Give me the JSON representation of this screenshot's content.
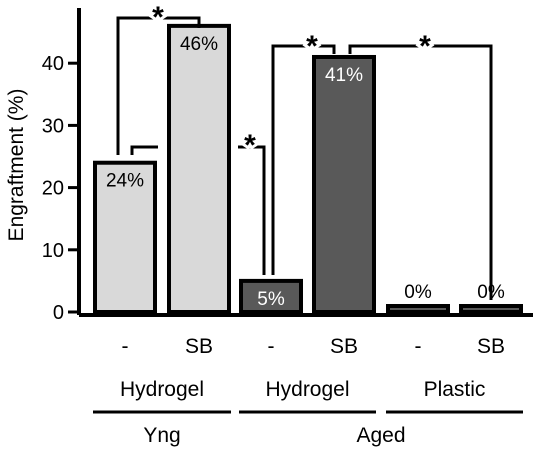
{
  "chart_data": {
    "type": "bar",
    "ylabel": "Engraftment (%)",
    "ylim": [
      0,
      46
    ],
    "yticks": [
      0,
      10,
      20,
      30,
      40
    ],
    "grid": false,
    "categories": [
      "-",
      "SB",
      "-",
      "SB",
      "-",
      "SB"
    ],
    "values": [
      24,
      46,
      5,
      41,
      0,
      0
    ],
    "data_labels": [
      "24%",
      "46%",
      "5%",
      "41%",
      "0%",
      "0%"
    ],
    "bar_colors": [
      "#d9d9d9",
      "#d9d9d9",
      "#595959",
      "#595959",
      "#595959",
      "#595959"
    ],
    "label_colors": [
      "#000000",
      "#000000",
      "#ffffff",
      "#ffffff",
      "#000000",
      "#000000"
    ],
    "groups": [
      {
        "label": "Hydrogel",
        "bars": [
          0,
          1
        ]
      },
      {
        "label": "Hydrogel",
        "bars": [
          2,
          3
        ]
      },
      {
        "label": "Plastic",
        "bars": [
          4,
          5
        ]
      }
    ],
    "supergroups": [
      {
        "label": "Yng",
        "bars": [
          0,
          1
        ]
      },
      {
        "label": "Aged",
        "bars": [
          2,
          5
        ]
      }
    ],
    "significance": [
      {
        "from": 0,
        "to": 1,
        "label": "*"
      },
      {
        "from": 0,
        "to": 2,
        "label": "*"
      },
      {
        "from": 2,
        "to": 3,
        "label": "*"
      },
      {
        "from": 3,
        "to": 5,
        "label": "*"
      }
    ]
  }
}
